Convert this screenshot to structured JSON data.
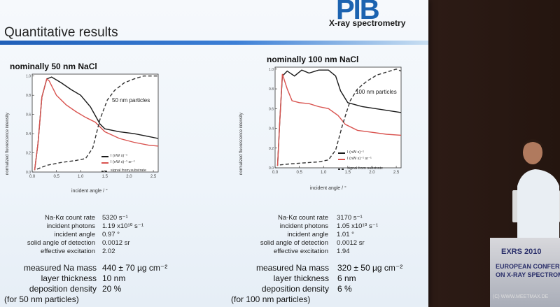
{
  "slide": {
    "logo": "PIB",
    "logo_sub": "X-ray spectrometry",
    "title": "Quantitative results"
  },
  "left": {
    "panel_title": "nominally 50 nm NaCl",
    "annotation": "50 nm particles",
    "legend": [
      "I (nW s)⁻¹",
      "I (nW s)⁻¹ sr⁻¹",
      "signal from substrate"
    ],
    "stats_labels": [
      "Na-Kα count rate",
      "incident photons",
      "incident angle",
      "solid angle of detection",
      "effective excitation"
    ],
    "stats_values": [
      "5320 s⁻¹",
      "1.19 x10¹⁰ s⁻¹",
      "0.97 °",
      "0.0012 sr",
      "2.02"
    ],
    "big_labels": [
      "measured Na mass",
      "layer thickness",
      "deposition density"
    ],
    "big_values": [
      "440 ± 70 µg cm⁻²",
      "10 nm",
      "20 %"
    ],
    "footnote": "(for 50 nm particles)"
  },
  "right": {
    "panel_title": "nominally 100 nm NaCl",
    "annotation": "100 nm particles",
    "legend": [
      "I (nW s)⁻¹",
      "I (nW s)⁻¹ sr⁻¹",
      "signal from substrate"
    ],
    "stats_labels": [
      "Na-Kα count rate",
      "incident photons",
      "incident angle",
      "solid angle of detection",
      "effective excitation"
    ],
    "stats_values": [
      "3170 s⁻¹",
      "1.05 x10¹⁰ s⁻¹",
      "1.01 °",
      "0.0012 sr",
      "1.94"
    ],
    "big_labels": [
      "measured Na mass",
      "layer thickness",
      "deposition density"
    ],
    "big_values": [
      "320 ± 50 µg cm⁻²",
      "6 nm",
      "6 %"
    ],
    "footnote": "(for 100 nm particles)"
  },
  "axes": {
    "ylabel": "normalized fluorescence intensity",
    "xlabel": "incident angle / °",
    "xticks": [
      "0.0",
      "0.5",
      "1.0",
      "1.5",
      "2.0",
      "2.5"
    ],
    "yticks": [
      "0.0",
      "0.2",
      "0.4",
      "0.6",
      "0.8",
      "1.0"
    ]
  },
  "podium": {
    "line1": "EXRS 2010",
    "line2": "EUROPEAN CONFER",
    "line3": "ON X-RAY SPECTROM"
  },
  "watermark": "(C) WWW.MEETMAX.DE",
  "chart_data": [
    {
      "type": "line",
      "title": "nominally 50 nm NaCl",
      "xlabel": "incident angle / °",
      "ylabel": "normalized fluorescence intensity",
      "xlim": [
        0,
        2.6
      ],
      "ylim": [
        0,
        1.02
      ],
      "series": [
        {
          "name": "I (nW s)⁻¹",
          "color": "#1a1a1a",
          "dash": false,
          "x": [
            0.05,
            0.12,
            0.2,
            0.3,
            0.4,
            0.6,
            0.8,
            1.0,
            1.2,
            1.4,
            1.5,
            1.8,
            2.1,
            2.4,
            2.6
          ],
          "y": [
            0.02,
            0.3,
            0.78,
            0.97,
            0.99,
            0.93,
            0.86,
            0.8,
            0.68,
            0.5,
            0.45,
            0.42,
            0.4,
            0.37,
            0.35
          ]
        },
        {
          "name": "I (nW s)⁻¹ sr⁻¹",
          "color": "#d9534f",
          "dash": false,
          "x": [
            0.05,
            0.12,
            0.2,
            0.3,
            0.35,
            0.5,
            0.7,
            0.9,
            1.1,
            1.3,
            1.5,
            1.8,
            2.1,
            2.4,
            2.6
          ],
          "y": [
            0.02,
            0.3,
            0.78,
            0.97,
            0.95,
            0.8,
            0.7,
            0.63,
            0.57,
            0.52,
            0.42,
            0.35,
            0.31,
            0.28,
            0.27
          ]
        },
        {
          "name": "signal from substrate",
          "color": "#333333",
          "dash": true,
          "x": [
            0.1,
            0.3,
            0.6,
            0.9,
            1.1,
            1.25,
            1.4,
            1.55,
            1.7,
            1.9,
            2.1,
            2.3,
            2.5,
            2.6
          ],
          "y": [
            0.03,
            0.07,
            0.1,
            0.12,
            0.14,
            0.25,
            0.55,
            0.75,
            0.85,
            0.93,
            0.97,
            1.0,
            1.0,
            1.0
          ]
        }
      ]
    },
    {
      "type": "line",
      "title": "nominally 100 nm NaCl",
      "xlabel": "incident angle / °",
      "ylabel": "normalized fluorescence intensity",
      "xlim": [
        0,
        2.6
      ],
      "ylim": [
        0,
        1.02
      ],
      "series": [
        {
          "name": "I (nW s)⁻¹",
          "color": "#1a1a1a",
          "dash": false,
          "x": [
            0.05,
            0.1,
            0.15,
            0.25,
            0.4,
            0.55,
            0.7,
            0.9,
            1.1,
            1.25,
            1.35,
            1.5,
            1.8,
            2.2,
            2.6
          ],
          "y": [
            0.02,
            0.5,
            0.93,
            0.98,
            0.93,
            0.99,
            0.96,
            0.99,
            0.99,
            0.93,
            0.78,
            0.66,
            0.62,
            0.59,
            0.56
          ]
        },
        {
          "name": "I (nW s)⁻¹ sr⁻¹",
          "color": "#d9534f",
          "dash": false,
          "x": [
            0.05,
            0.1,
            0.15,
            0.25,
            0.35,
            0.5,
            0.7,
            0.9,
            1.1,
            1.3,
            1.45,
            1.7,
            2.0,
            2.3,
            2.6
          ],
          "y": [
            0.02,
            0.5,
            0.95,
            0.8,
            0.68,
            0.66,
            0.65,
            0.62,
            0.6,
            0.53,
            0.44,
            0.38,
            0.36,
            0.34,
            0.33
          ]
        },
        {
          "name": "signal from substrate",
          "color": "#333333",
          "dash": true,
          "x": [
            0.1,
            0.3,
            0.6,
            0.9,
            1.1,
            1.25,
            1.4,
            1.55,
            1.7,
            1.9,
            2.1,
            2.3,
            2.5,
            2.6
          ],
          "y": [
            0.03,
            0.04,
            0.05,
            0.06,
            0.08,
            0.18,
            0.45,
            0.68,
            0.8,
            0.88,
            0.94,
            0.97,
            1.0,
            0.98
          ]
        }
      ]
    }
  ]
}
